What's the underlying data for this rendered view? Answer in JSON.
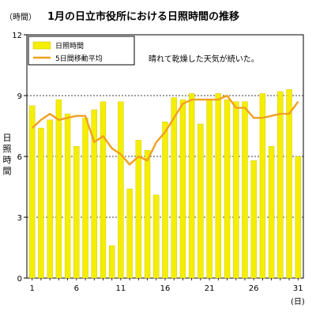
{
  "chart_data": {
    "type": "bar",
    "title": "1月の日立市役所における日照時間の推移",
    "title_unit": "（時間）",
    "ylabel": "日照時間",
    "xlabel_unit": "(日)",
    "annotation": "晴れて乾燥した天気が続いた。",
    "ylim": [
      0,
      12
    ],
    "yticks": [
      0,
      3,
      6,
      9,
      12
    ],
    "xticks": [
      1,
      6,
      11,
      16,
      21,
      26,
      31
    ],
    "grid": "dashed-horizontal",
    "legend_position": "top-left",
    "colors": {
      "bar": "#f5ee00",
      "bar_edge": "#c8bf00",
      "line": "#f0a020"
    },
    "x": [
      1,
      2,
      3,
      4,
      5,
      6,
      7,
      8,
      9,
      10,
      11,
      12,
      13,
      14,
      15,
      16,
      17,
      18,
      19,
      20,
      21,
      22,
      23,
      24,
      25,
      26,
      27,
      28,
      29,
      30,
      31
    ],
    "series": [
      {
        "name": "日照時間",
        "kind": "bar",
        "values": [
          8.5,
          7.4,
          7.8,
          8.8,
          8.1,
          6.5,
          7.9,
          8.3,
          8.7,
          1.6,
          8.7,
          4.4,
          6.8,
          6.3,
          4.1,
          7.7,
          8.9,
          8.8,
          9.1,
          7.6,
          8.8,
          9.1,
          8.8,
          8.7,
          8.7,
          5.8,
          9.1,
          6.5,
          9.2,
          9.3,
          6.0
        ]
      },
      {
        "name": "5日間移動平均",
        "kind": "line",
        "values": [
          7.4,
          7.8,
          8.1,
          7.8,
          7.9,
          8.0,
          8.0,
          6.7,
          7.0,
          6.4,
          6.1,
          5.6,
          6.0,
          5.8,
          6.7,
          7.2,
          7.9,
          8.6,
          8.8,
          8.8,
          8.8,
          8.8,
          9.0,
          8.4,
          8.4,
          7.9,
          7.9,
          8.0,
          8.1,
          8.1,
          8.7
        ]
      }
    ]
  }
}
